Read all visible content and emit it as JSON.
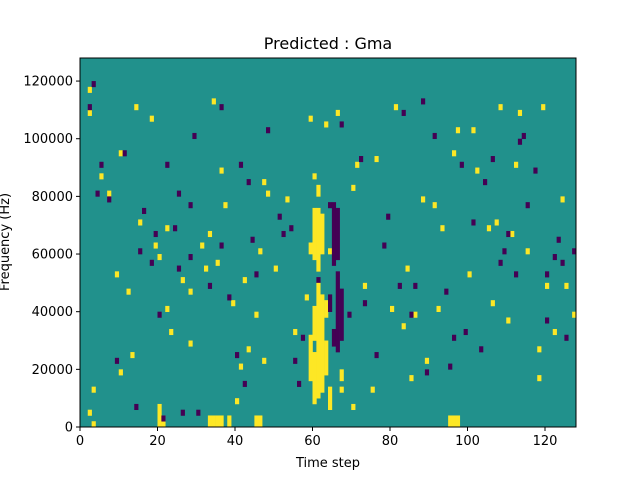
{
  "chart_data": {
    "type": "heatmap",
    "title": "Predicted : Gma",
    "xlabel": "Time step",
    "ylabel": "Frequency (Hz)",
    "xlim": [
      0,
      128
    ],
    "ylim": [
      0,
      128000
    ],
    "xticks": [
      0,
      20,
      40,
      60,
      80,
      100,
      120
    ],
    "yticks": [
      0,
      20000,
      40000,
      60000,
      80000,
      100000,
      120000
    ],
    "xtick_labels": [
      "0",
      "20",
      "40",
      "60",
      "80",
      "100",
      "120"
    ],
    "ytick_labels": [
      "0",
      "20000",
      "40000",
      "60000",
      "80000",
      "100000",
      "120000"
    ],
    "grid": false,
    "legend": "none",
    "rows": 64,
    "row_height_hz": 2000,
    "colors": {
      "background": "#21918c",
      "high": "#fde725",
      "low": "#440154"
    },
    "value_scale": {
      "low": 0,
      "background": 0.5,
      "high": 1
    },
    "cells_high": [
      [
        3,
        0
      ],
      [
        3,
        6
      ],
      [
        10,
        9
      ],
      [
        22,
        20
      ],
      [
        50,
        27
      ],
      [
        60,
        32
      ],
      [
        81,
        55
      ],
      [
        119,
        55
      ],
      [
        2,
        54
      ],
      [
        5,
        43
      ],
      [
        7,
        40
      ],
      [
        15,
        35
      ],
      [
        18,
        53
      ],
      [
        20,
        29
      ],
      [
        26,
        25
      ],
      [
        31,
        31
      ],
      [
        33,
        33
      ],
      [
        35,
        28
      ],
      [
        40,
        4
      ],
      [
        42,
        25
      ],
      [
        45,
        19
      ],
      [
        46,
        30
      ],
      [
        48,
        40
      ],
      [
        53,
        39
      ],
      [
        55,
        16
      ],
      [
        58,
        22
      ],
      [
        60,
        43
      ],
      [
        63,
        52
      ],
      [
        66,
        54
      ],
      [
        70,
        41
      ],
      [
        73,
        24
      ],
      [
        75,
        6
      ],
      [
        83,
        17
      ],
      [
        84,
        27
      ],
      [
        85,
        8
      ],
      [
        91,
        38
      ],
      [
        93,
        34
      ],
      [
        96,
        47
      ],
      [
        100,
        26
      ],
      [
        106,
        21
      ],
      [
        108,
        55
      ],
      [
        111,
        33
      ],
      [
        113,
        54
      ],
      [
        120,
        24
      ],
      [
        124,
        39
      ],
      [
        127,
        19
      ],
      [
        12,
        23
      ],
      [
        13,
        12
      ],
      [
        23,
        16
      ],
      [
        28,
        23
      ],
      [
        34,
        56
      ],
      [
        43,
        13
      ],
      [
        64,
        30
      ],
      [
        70,
        3
      ],
      [
        76,
        46
      ],
      [
        86,
        19
      ],
      [
        88,
        39
      ],
      [
        102,
        44
      ],
      [
        110,
        18
      ],
      [
        115,
        30
      ],
      [
        9,
        26
      ],
      [
        19,
        31
      ],
      [
        22,
        34
      ],
      [
        32,
        27
      ],
      [
        37,
        38
      ],
      [
        39,
        21
      ],
      [
        41,
        10
      ],
      [
        47,
        42
      ],
      [
        59,
        53
      ],
      [
        67,
        6
      ],
      [
        71,
        45
      ],
      [
        89,
        11
      ],
      [
        97,
        51
      ],
      [
        105,
        34
      ],
      [
        112,
        45
      ],
      [
        118,
        8
      ],
      [
        122,
        16
      ],
      [
        10,
        47
      ],
      [
        28,
        14
      ],
      [
        47,
        11
      ],
      [
        80,
        20
      ],
      [
        92,
        20
      ],
      [
        101,
        51
      ],
      [
        107,
        35
      ],
      [
        118,
        13
      ],
      [
        125,
        24
      ],
      [
        2,
        58
      ],
      [
        2,
        2
      ],
      [
        14,
        55
      ],
      [
        36,
        44
      ]
    ],
    "cells_low": [
      [
        2,
        55
      ],
      [
        4,
        40
      ],
      [
        5,
        45
      ],
      [
        7,
        39
      ],
      [
        9,
        11
      ],
      [
        11,
        47
      ],
      [
        14,
        3
      ],
      [
        20,
        19
      ],
      [
        22,
        45
      ],
      [
        25,
        27
      ],
      [
        28,
        29
      ],
      [
        30,
        2
      ],
      [
        38,
        22
      ],
      [
        41,
        45
      ],
      [
        44,
        32
      ],
      [
        52,
        33
      ],
      [
        57,
        15
      ],
      [
        61,
        25
      ],
      [
        64,
        38
      ],
      [
        67,
        52
      ],
      [
        72,
        46
      ],
      [
        76,
        12
      ],
      [
        79,
        36
      ],
      [
        82,
        24
      ],
      [
        85,
        19
      ],
      [
        89,
        9
      ],
      [
        94,
        23
      ],
      [
        98,
        45
      ],
      [
        103,
        13
      ],
      [
        104,
        42
      ],
      [
        108,
        28
      ],
      [
        110,
        33
      ],
      [
        112,
        26
      ],
      [
        114,
        50
      ],
      [
        117,
        44
      ],
      [
        120,
        18
      ],
      [
        122,
        29
      ],
      [
        125,
        15
      ],
      [
        127,
        30
      ],
      [
        3,
        59
      ],
      [
        15,
        30
      ],
      [
        18,
        28
      ],
      [
        25,
        40
      ],
      [
        29,
        50
      ],
      [
        33,
        24
      ],
      [
        36,
        55
      ],
      [
        43,
        42
      ],
      [
        48,
        51
      ],
      [
        51,
        36
      ],
      [
        56,
        7
      ],
      [
        73,
        21
      ],
      [
        78,
        31
      ],
      [
        88,
        56
      ],
      [
        95,
        10
      ],
      [
        99,
        16
      ],
      [
        106,
        46
      ],
      [
        115,
        38
      ],
      [
        123,
        32
      ],
      [
        16,
        37
      ],
      [
        19,
        33
      ],
      [
        24,
        34
      ],
      [
        26,
        2
      ],
      [
        36,
        31
      ],
      [
        40,
        12
      ],
      [
        45,
        26
      ],
      [
        55,
        11
      ],
      [
        60,
        30
      ],
      [
        69,
        19
      ],
      [
        83,
        54
      ],
      [
        86,
        24
      ],
      [
        91,
        50
      ],
      [
        96,
        15
      ],
      [
        101,
        35
      ],
      [
        109,
        30
      ],
      [
        113,
        49
      ],
      [
        120,
        26
      ],
      [
        124,
        28
      ],
      [
        28,
        38
      ],
      [
        42,
        7
      ],
      [
        54,
        34
      ]
    ],
    "columns": [
      {
        "x": 20,
        "high": [
          [
            0,
            3
          ]
        ],
        "low": []
      },
      {
        "x": 21,
        "high": [
          [
            0,
            1
          ]
        ],
        "low": [
          [
            1,
            1
          ]
        ]
      },
      {
        "x": 33,
        "high": [
          [
            0,
            1
          ]
        ],
        "low": []
      },
      {
        "x": 34,
        "high": [
          [
            0,
            1
          ]
        ],
        "low": []
      },
      {
        "x": 35,
        "high": [
          [
            0,
            1
          ]
        ],
        "low": []
      },
      {
        "x": 36,
        "high": [
          [
            0,
            1
          ]
        ],
        "low": []
      },
      {
        "x": 38,
        "high": [
          [
            0,
            1
          ]
        ],
        "low": []
      },
      {
        "x": 45,
        "high": [
          [
            0,
            1
          ]
        ],
        "low": []
      },
      {
        "x": 46,
        "high": [
          [
            0,
            1
          ]
        ],
        "low": []
      },
      {
        "x": 59,
        "high": [
          [
            8,
            15
          ],
          [
            30,
            31
          ]
        ],
        "low": []
      },
      {
        "x": 60,
        "high": [
          [
            4,
            12
          ],
          [
            15,
            20
          ],
          [
            29,
            37
          ]
        ],
        "low": []
      },
      {
        "x": 61,
        "high": [
          [
            5,
            24
          ],
          [
            27,
            37
          ],
          [
            40,
            41
          ]
        ],
        "low": []
      },
      {
        "x": 62,
        "high": [
          [
            6,
            22
          ],
          [
            30,
            36
          ]
        ],
        "low": []
      },
      {
        "x": 63,
        "high": [
          [
            9,
            14
          ],
          [
            19,
            21
          ]
        ],
        "low": []
      },
      {
        "x": 64,
        "high": [
          [
            3,
            6
          ]
        ],
        "low": [
          [
            20,
            22
          ]
        ]
      },
      {
        "x": 65,
        "high": [],
        "low": [
          [
            14,
            16
          ],
          [
            28,
            38
          ]
        ]
      },
      {
        "x": 66,
        "high": [],
        "low": [
          [
            13,
            26
          ],
          [
            29,
            37
          ]
        ]
      },
      {
        "x": 67,
        "high": [
          [
            8,
            9
          ]
        ],
        "low": [
          [
            15,
            23
          ]
        ]
      },
      {
        "x": 95,
        "high": [
          [
            0,
            1
          ]
        ],
        "low": []
      },
      {
        "x": 96,
        "high": [
          [
            0,
            1
          ]
        ],
        "low": []
      },
      {
        "x": 97,
        "high": [
          [
            0,
            1
          ]
        ],
        "low": []
      }
    ]
  }
}
